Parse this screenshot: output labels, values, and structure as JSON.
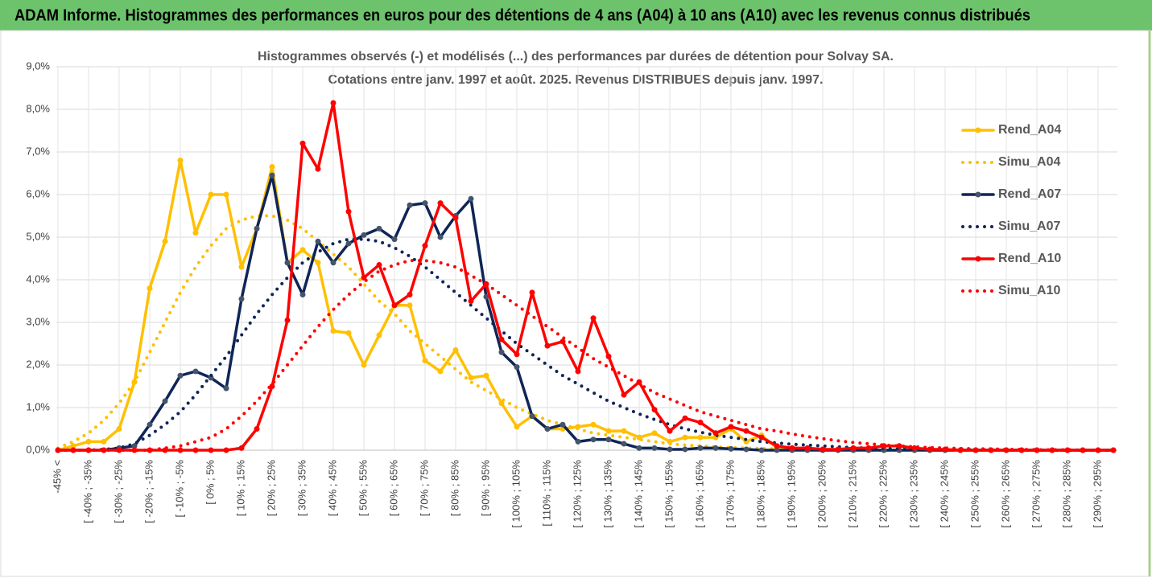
{
  "header": {
    "title": "ADAM Informe. Histogrammes des performances en euros pour des détentions de 4 ans (A04) à 10 ans (A10) avec les revenus connus distribués"
  },
  "chart_data": {
    "type": "line",
    "title": "Histogrammes observés (-) et modélisés (...) des performances par durées de détention pour Solvay SA.",
    "subtitle": "Cotations entre janv. 1997 et août. 2025. Revenus DISTRIBUES depuis janv. 1997.",
    "categories": [
      "-45% <",
      null,
      "[ -40% ; -35%",
      null,
      "[ -30% ; -25%",
      null,
      "[ -20% ; -15%",
      null,
      "[ -10% ; -5%",
      null,
      "[ 0% ; 5%",
      null,
      "[ 10% ; 15%",
      null,
      "[ 20% ; 25%",
      null,
      "[ 30% ; 35%",
      null,
      "[ 40% ; 45%",
      null,
      "[ 50% ; 55%",
      null,
      "[ 60% ; 65%",
      null,
      "[ 70% ; 75%",
      null,
      "[ 80% ; 85%",
      null,
      "[ 90% ; 95%",
      null,
      "[ 100% ; 105%",
      null,
      "[ 110% ; 115%",
      null,
      "[ 120% ; 125%",
      null,
      "[ 130% ; 135%",
      null,
      "[ 140% ; 145%",
      null,
      "[ 150% ; 155%",
      null,
      "[ 160% ; 165%",
      null,
      "[ 170% ; 175%",
      null,
      "[ 180% ; 185%",
      null,
      "[ 190% ; 195%",
      null,
      "[ 200% ; 205%",
      null,
      "[ 210% ; 215%",
      null,
      "[ 220% ; 225%",
      null,
      "[ 230% ; 235%",
      null,
      "[ 240% ; 245%",
      null,
      "[ 250% ; 255%",
      null,
      "[ 260% ; 265%",
      null,
      "[ 270% ; 275%",
      null,
      "[ 280% ; 285%",
      null,
      "[ 290% ; 295%",
      null
    ],
    "series": [
      {
        "name": "Rend_A04",
        "color": "#ffc000",
        "line_style": "solid",
        "markers": true,
        "values": [
          0,
          0.1,
          0.2,
          0.2,
          0.5,
          1.6,
          3.8,
          4.9,
          6.8,
          5.1,
          6.0,
          6.0,
          4.3,
          5.2,
          6.65,
          4.4,
          4.7,
          4.4,
          2.8,
          2.75,
          2.0,
          2.7,
          3.4,
          3.4,
          2.1,
          1.85,
          2.35,
          1.7,
          1.75,
          1.1,
          0.55,
          0.8,
          0.5,
          0.5,
          0.55,
          0.6,
          0.45,
          0.45,
          0.3,
          0.4,
          0.2,
          0.3,
          0.3,
          0.3,
          0.5,
          0.2,
          0.35,
          0.05,
          0.05,
          0.02,
          0.02,
          0.01,
          0.01,
          0.01,
          0,
          0,
          0,
          0,
          0,
          0,
          0,
          0,
          0,
          0,
          0,
          0,
          0,
          0,
          0,
          0
        ]
      },
      {
        "name": "Simu_A04",
        "color": "#ffc000",
        "line_style": "dotted",
        "markers": false,
        "values": [
          0.05,
          0.2,
          0.4,
          0.7,
          1.1,
          1.6,
          2.3,
          3.0,
          3.7,
          4.3,
          4.8,
          5.2,
          5.4,
          5.5,
          5.5,
          5.4,
          5.2,
          4.9,
          4.6,
          4.3,
          3.9,
          3.5,
          3.2,
          2.8,
          2.5,
          2.2,
          1.9,
          1.6,
          1.4,
          1.2,
          1.0,
          0.85,
          0.7,
          0.6,
          0.5,
          0.4,
          0.35,
          0.3,
          0.25,
          0.2,
          0.15,
          0.12,
          0.1,
          0.08,
          0.06,
          0.05,
          0.04,
          0.03,
          0.02,
          0.02,
          0.01,
          0.01,
          0.01,
          0,
          0,
          0,
          0,
          0,
          0,
          0,
          0,
          0,
          0,
          0,
          0,
          0,
          0,
          0,
          0,
          0
        ]
      },
      {
        "name": "Rend_A07",
        "color": "#0f2557",
        "marker_color": "#44546a",
        "line_style": "solid",
        "markers": true,
        "values": [
          0,
          0,
          0,
          0,
          0.05,
          0.1,
          0.6,
          1.15,
          1.75,
          1.85,
          1.7,
          1.45,
          3.55,
          5.2,
          6.45,
          4.4,
          3.65,
          4.9,
          4.4,
          4.85,
          5.05,
          5.2,
          4.95,
          5.75,
          5.8,
          5.0,
          5.5,
          5.9,
          3.6,
          2.3,
          1.95,
          0.8,
          0.5,
          0.6,
          0.2,
          0.25,
          0.25,
          0.15,
          0.05,
          0.05,
          0.02,
          0.02,
          0.05,
          0.05,
          0.03,
          0.02,
          0,
          0,
          0,
          0,
          0,
          0,
          0,
          0,
          0,
          0,
          0,
          0,
          0,
          0,
          0,
          0,
          0,
          0,
          0,
          0,
          0,
          0,
          0,
          0
        ]
      },
      {
        "name": "Simu_A07",
        "color": "#0f2557",
        "line_style": "dotted",
        "markers": false,
        "values": [
          0,
          0,
          0,
          0.02,
          0.05,
          0.15,
          0.35,
          0.6,
          0.9,
          1.3,
          1.75,
          2.2,
          2.7,
          3.2,
          3.65,
          4.05,
          4.4,
          4.65,
          4.85,
          4.95,
          4.95,
          4.9,
          4.75,
          4.55,
          4.3,
          4.0,
          3.7,
          3.4,
          3.1,
          2.8,
          2.5,
          2.25,
          2.0,
          1.75,
          1.55,
          1.35,
          1.15,
          1.0,
          0.85,
          0.72,
          0.6,
          0.5,
          0.42,
          0.35,
          0.3,
          0.25,
          0.2,
          0.17,
          0.14,
          0.12,
          0.1,
          0.08,
          0.06,
          0.05,
          0.04,
          0.03,
          0.02,
          0.02,
          0.01,
          0.01,
          0.01,
          0.01,
          0,
          0,
          0,
          0,
          0,
          0,
          0,
          0
        ]
      },
      {
        "name": "Rend_A10",
        "color": "#ff0000",
        "line_style": "solid",
        "markers": true,
        "values": [
          0,
          0,
          0,
          0,
          0,
          0,
          0,
          0,
          0,
          0,
          0,
          0,
          0.05,
          0.5,
          1.5,
          3.05,
          7.2,
          6.6,
          8.15,
          5.6,
          4.05,
          4.35,
          3.4,
          3.65,
          4.8,
          5.8,
          5.45,
          3.5,
          3.9,
          2.6,
          2.25,
          3.7,
          2.45,
          2.55,
          1.85,
          3.1,
          2.2,
          1.3,
          1.6,
          0.95,
          0.45,
          0.75,
          0.65,
          0.4,
          0.55,
          0.45,
          0.3,
          0.1,
          0.05,
          0.05,
          0.02,
          0.02,
          0.05,
          0.05,
          0.1,
          0.1,
          0.05,
          0.02,
          0.02,
          0,
          0,
          0,
          0,
          0,
          0,
          0,
          0,
          0,
          0,
          0
        ]
      },
      {
        "name": "Simu_A10",
        "color": "#ff0000",
        "line_style": "dotted",
        "markers": false,
        "values": [
          0,
          0,
          0,
          0,
          0,
          0,
          0,
          0.05,
          0.1,
          0.2,
          0.3,
          0.5,
          0.8,
          1.15,
          1.55,
          2.0,
          2.45,
          2.9,
          3.3,
          3.65,
          3.95,
          4.2,
          4.35,
          4.45,
          4.45,
          4.4,
          4.3,
          4.1,
          3.9,
          3.65,
          3.4,
          3.15,
          2.9,
          2.65,
          2.4,
          2.15,
          1.95,
          1.75,
          1.55,
          1.35,
          1.2,
          1.05,
          0.9,
          0.8,
          0.7,
          0.6,
          0.5,
          0.45,
          0.38,
          0.32,
          0.27,
          0.22,
          0.18,
          0.15,
          0.12,
          0.1,
          0.08,
          0.06,
          0.05,
          0.04,
          0.03,
          0.03,
          0.02,
          0.02,
          0.01,
          0.01,
          0.01,
          0,
          0,
          0
        ]
      }
    ],
    "ylim": [
      0,
      9
    ],
    "yticks": [
      {
        "value": 0,
        "label": "0,0%"
      },
      {
        "value": 1,
        "label": "1,0%"
      },
      {
        "value": 2,
        "label": "2,0%"
      },
      {
        "value": 3,
        "label": "3,0%"
      },
      {
        "value": 4,
        "label": "4,0%"
      },
      {
        "value": 5,
        "label": "5,0%"
      },
      {
        "value": 6,
        "label": "6,0%"
      },
      {
        "value": 7,
        "label": "7,0%"
      },
      {
        "value": 8,
        "label": "8,0%"
      },
      {
        "value": 9,
        "label": "9,0%"
      }
    ],
    "grid": true,
    "legend": "right"
  }
}
